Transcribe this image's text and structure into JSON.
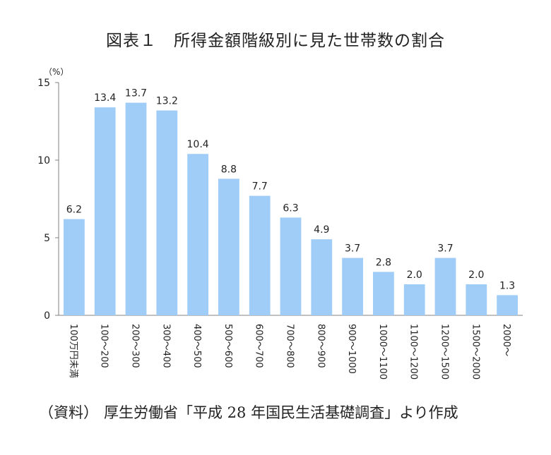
{
  "title": "図表１　所得金額階級別に見た世帯数の割合",
  "source": {
    "label": "（資料）",
    "text": "厚生労働省「平成 28 年国民生活基礎調査」より作成"
  },
  "chart_data": {
    "type": "bar",
    "unit_label": "（%）",
    "categories": [
      "100万円未満",
      "100～200",
      "200～300",
      "300～400",
      "400～500",
      "500～600",
      "600～700",
      "700～800",
      "800～900",
      "900～1000",
      "1000～1100",
      "1100～1200",
      "1200～1500",
      "1500～2000",
      "2000～"
    ],
    "values": [
      6.2,
      13.4,
      13.7,
      13.2,
      10.4,
      8.8,
      7.7,
      6.3,
      4.9,
      3.7,
      2.8,
      2.0,
      3.7,
      2.0,
      1.3
    ],
    "value_labels": [
      "6.2",
      "13.4",
      "13.7",
      "13.2",
      "10.4",
      "8.8",
      "7.7",
      "6.3",
      "4.9",
      "3.7",
      "2.8",
      "2.0",
      "3.7",
      "2.0",
      "1.3"
    ],
    "ylim": [
      0,
      15
    ],
    "yticks": [
      "0",
      "5",
      "10",
      "15"
    ],
    "grid": false,
    "bar_color": "#9fcdf7"
  }
}
